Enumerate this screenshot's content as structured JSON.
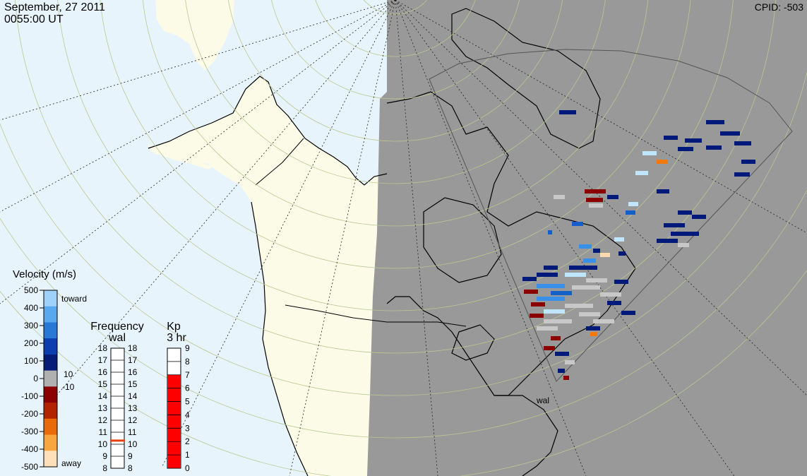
{
  "header": {
    "date": "September, 27 2011",
    "time": "0055:00 UT",
    "cpid": "CPID:  -503"
  },
  "radar": {
    "station": "wal"
  },
  "velocity_scale": {
    "title": "Velocity (m/s)",
    "ticks": [
      "500",
      "400",
      "300",
      "200",
      "100",
      "0",
      "-100",
      "-200",
      "-300",
      "-400",
      "-500"
    ],
    "toward_label": "toward",
    "away_label": "away",
    "pos_gs": "10",
    "neg_gs": "-10",
    "colors": [
      "#fddfba",
      "#f7a640",
      "#e86a0a",
      "#b22400",
      "#8b0000",
      "#b0b0b0",
      "#061a78",
      "#0c3eb0",
      "#2878d8",
      "#58a8f0",
      "#9fd2fa"
    ]
  },
  "frequency_scale": {
    "title": "Frequency",
    "radar": "wal",
    "ticks": [
      "18",
      "17",
      "16",
      "15",
      "14",
      "13",
      "12",
      "11",
      "10",
      "9",
      "8"
    ],
    "current_mhz": 10.3,
    "marker_color": "#e84010"
  },
  "kp_scale": {
    "title": "Kp",
    "subtitle": "3 hr",
    "ticks": [
      "9",
      "8",
      "7",
      "6",
      "5",
      "4",
      "3",
      "2",
      "1",
      "0"
    ],
    "value": 7,
    "fill_color": "#ff0000"
  },
  "map": {
    "day_ocean": "#e8f4fc",
    "day_land": "#fbfbe8",
    "night_fill": "#999999",
    "coast": "#000000",
    "echo_colors": {
      "dark_blue": "#001a7a",
      "blue": "#1460c8",
      "mid_blue": "#3890e8",
      "light_blue": "#bfe6fb",
      "dark_red": "#8b0000",
      "orange": "#f07a10",
      "peach": "#fdd9b0",
      "gray": "#c8c8c8"
    }
  }
}
